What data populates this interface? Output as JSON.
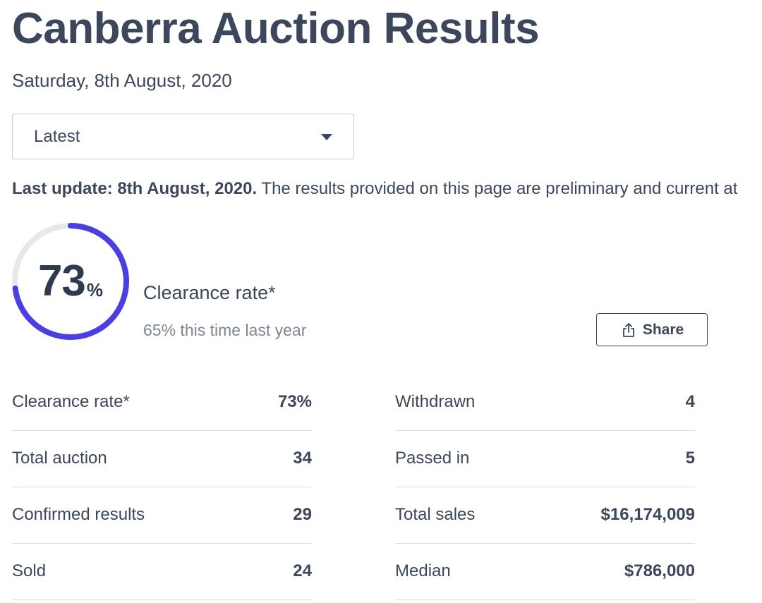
{
  "page": {
    "title": "Canberra Auction Results",
    "date": "Saturday, 8th August, 2020"
  },
  "filter": {
    "selected": "Latest"
  },
  "update": {
    "label": "Last update: 8th August, 2020.",
    "text": " The results provided on this page are preliminary and current at"
  },
  "clearance": {
    "value": "73",
    "percent_sign": "%",
    "fraction": 0.73,
    "label": "Clearance rate*",
    "last_year": "65% this time last year",
    "colors": {
      "progress": "#4a3fe0",
      "track": "#e6e8ec"
    }
  },
  "share": {
    "label": "Share",
    "icon": "share-icon"
  },
  "stats": {
    "left": [
      {
        "label": "Clearance rate*",
        "value": "73%"
      },
      {
        "label": "Total auction",
        "value": "34"
      },
      {
        "label": "Confirmed results",
        "value": "29"
      },
      {
        "label": "Sold",
        "value": "24"
      }
    ],
    "right": [
      {
        "label": "Withdrawn",
        "value": "4"
      },
      {
        "label": "Passed in",
        "value": "5"
      },
      {
        "label": "Total sales",
        "value": "$16,174,009"
      },
      {
        "label": "Median",
        "value": "$786,000"
      }
    ]
  }
}
